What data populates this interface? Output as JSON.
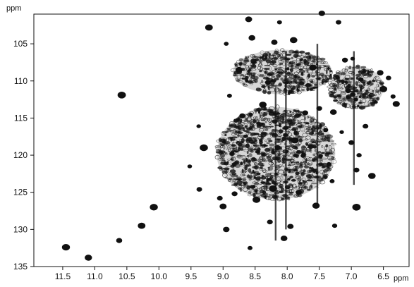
{
  "chart_data": {
    "type": "scatter",
    "title": "",
    "xlabel": "",
    "ylabel": "",
    "x_unit": "ppm",
    "y_unit": "ppm",
    "xlim": [
      11.95,
      6.1
    ],
    "ylim": [
      101.0,
      135.0
    ],
    "x_reversed": true,
    "grid": false,
    "x_ticks": [
      11.5,
      11.0,
      10.5,
      10.0,
      9.5,
      9.0,
      8.5,
      8.0,
      7.5,
      7.0,
      6.5
    ],
    "x_tick_labels": [
      "11.5",
      "11.0",
      "10.5",
      "10.0",
      "9.5",
      "9.0",
      "8.5",
      "8.0",
      "7.5",
      "7.0",
      "6.5"
    ],
    "y_ticks": [
      105,
      110,
      115,
      120,
      125,
      130,
      135
    ],
    "y_tick_labels": [
      "105",
      "110",
      "115",
      "120",
      "125",
      "130",
      "135"
    ],
    "peaks": [
      {
        "x": 11.45,
        "y": 132.4
      },
      {
        "x": 11.1,
        "y": 133.8
      },
      {
        "x": 10.62,
        "y": 131.5
      },
      {
        "x": 10.58,
        "y": 111.9
      },
      {
        "x": 10.27,
        "y": 129.5
      },
      {
        "x": 10.08,
        "y": 127.0
      },
      {
        "x": 9.52,
        "y": 121.5
      },
      {
        "x": 9.38,
        "y": 116.1
      },
      {
        "x": 9.37,
        "y": 124.6
      },
      {
        "x": 9.3,
        "y": 119.0
      },
      {
        "x": 9.22,
        "y": 102.8
      },
      {
        "x": 9.05,
        "y": 125.8
      },
      {
        "x": 9.0,
        "y": 126.9
      },
      {
        "x": 8.95,
        "y": 105.0
      },
      {
        "x": 8.95,
        "y": 130.0
      },
      {
        "x": 8.9,
        "y": 112.0
      },
      {
        "x": 8.82,
        "y": 125.2
      },
      {
        "x": 8.75,
        "y": 108.5
      },
      {
        "x": 8.7,
        "y": 114.7
      },
      {
        "x": 8.6,
        "y": 101.7
      },
      {
        "x": 8.58,
        "y": 132.5
      },
      {
        "x": 8.55,
        "y": 104.2
      },
      {
        "x": 8.48,
        "y": 126.0
      },
      {
        "x": 8.38,
        "y": 113.2
      },
      {
        "x": 8.3,
        "y": 110.2
      },
      {
        "x": 8.27,
        "y": 129.0
      },
      {
        "x": 8.22,
        "y": 124.5
      },
      {
        "x": 8.2,
        "y": 104.8
      },
      {
        "x": 8.15,
        "y": 119.0
      },
      {
        "x": 8.12,
        "y": 102.1
      },
      {
        "x": 8.05,
        "y": 131.2
      },
      {
        "x": 7.95,
        "y": 129.6
      },
      {
        "x": 7.9,
        "y": 104.5
      },
      {
        "x": 7.88,
        "y": 118.0
      },
      {
        "x": 7.82,
        "y": 125.0
      },
      {
        "x": 7.72,
        "y": 114.3
      },
      {
        "x": 7.6,
        "y": 108.2
      },
      {
        "x": 7.55,
        "y": 126.8
      },
      {
        "x": 7.5,
        "y": 113.7
      },
      {
        "x": 7.48,
        "y": 120.1
      },
      {
        "x": 7.46,
        "y": 100.9
      },
      {
        "x": 7.4,
        "y": 116.6
      },
      {
        "x": 7.35,
        "y": 121.2
      },
      {
        "x": 7.3,
        "y": 123.5
      },
      {
        "x": 7.28,
        "y": 114.2
      },
      {
        "x": 7.26,
        "y": 129.5
      },
      {
        "x": 7.2,
        "y": 102.1
      },
      {
        "x": 7.15,
        "y": 116.9
      },
      {
        "x": 7.1,
        "y": 107.2
      },
      {
        "x": 7.05,
        "y": 111.3
      },
      {
        "x": 6.98,
        "y": 107.0
      },
      {
        "x": 6.93,
        "y": 112.5
      },
      {
        "x": 6.92,
        "y": 122.0
      },
      {
        "x": 6.88,
        "y": 120.0
      },
      {
        "x": 6.85,
        "y": 109.8
      },
      {
        "x": 6.78,
        "y": 116.1
      },
      {
        "x": 6.55,
        "y": 108.9
      },
      {
        "x": 6.5,
        "y": 111.1
      },
      {
        "x": 6.42,
        "y": 109.6
      },
      {
        "x": 6.35,
        "y": 112.1
      },
      {
        "x": 6.3,
        "y": 113.1
      },
      {
        "x": 6.92,
        "y": 127.0
      },
      {
        "x": 7.0,
        "y": 118.3
      },
      {
        "x": 6.68,
        "y": 122.8
      }
    ],
    "dense_regions": [
      {
        "x": [
          9.1,
          7.25
        ],
        "y": [
          113.5,
          126.0
        ]
      },
      {
        "x": [
          8.85,
          7.3
        ],
        "y": [
          105.8,
          111.8
        ]
      },
      {
        "x": [
          7.35,
          6.5
        ],
        "y": [
          108.0,
          113.8
        ]
      }
    ],
    "streaks": [
      {
        "x": 8.18,
        "y": [
          111.0,
          131.5
        ]
      },
      {
        "x": 8.02,
        "y": [
          106.0,
          130.0
        ]
      },
      {
        "x": 7.53,
        "y": [
          105.0,
          127.0
        ]
      },
      {
        "x": 6.96,
        "y": [
          106.0,
          124.0
        ]
      }
    ],
    "color": "#111111"
  }
}
